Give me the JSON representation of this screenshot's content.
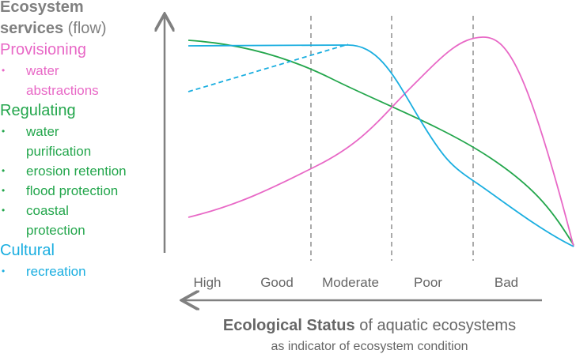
{
  "y_axis": {
    "title_bold": "Ecosystem services",
    "title_rest": "(flow)"
  },
  "groups": [
    {
      "title": "Provisioning",
      "items": [
        "water abstractions"
      ]
    },
    {
      "title": "Regulating",
      "items": [
        "water purification",
        "erosion retention",
        "flood protection",
        "coastal protection"
      ]
    },
    {
      "title": "Cultural",
      "items": [
        "recreation"
      ]
    }
  ],
  "x_axis": {
    "categories": [
      "High",
      "Good",
      "Moderate",
      "Poor",
      "Bad"
    ],
    "title_bold": "Ecological Status",
    "title_rest": "of aquatic ecosystems",
    "subtitle": "as indicator of ecosystem condition"
  }
}
